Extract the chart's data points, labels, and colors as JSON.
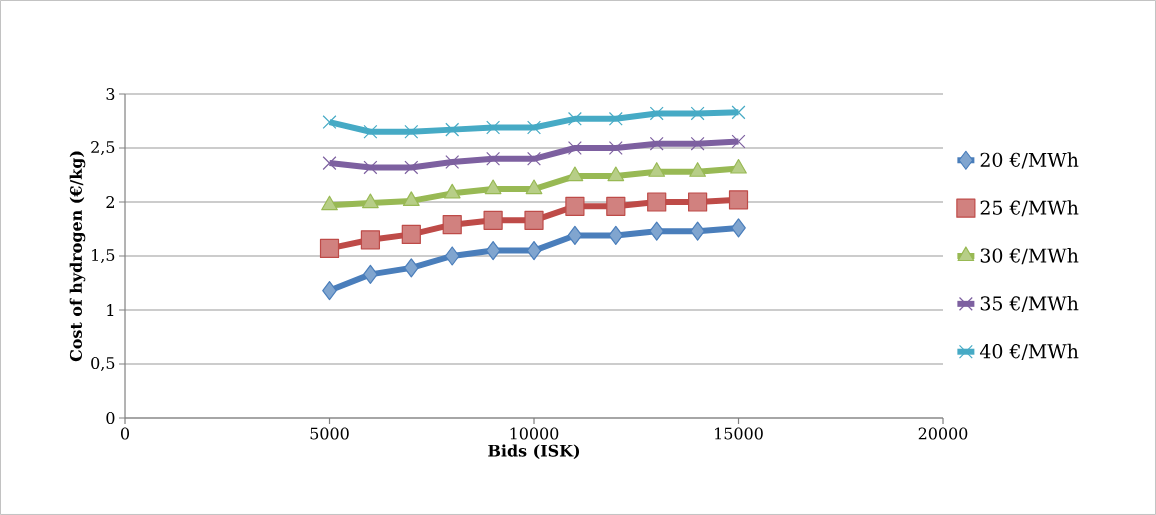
{
  "chart_data": {
    "type": "line",
    "xlabel": "Bids (ISK)",
    "ylabel": "Cost of hydrogen (€/kg)",
    "x": [
      5000,
      6000,
      7000,
      8000,
      9000,
      10000,
      11000,
      12000,
      13000,
      14000,
      15000
    ],
    "series": [
      {
        "name": "20 €/MWh",
        "color": "#4a7ebb",
        "marker": "diamond",
        "values": [
          1.18,
          1.33,
          1.39,
          1.5,
          1.55,
          1.55,
          1.69,
          1.69,
          1.73,
          1.73,
          1.76
        ]
      },
      {
        "name": "25 €/MWh",
        "color": "#be4b48",
        "marker": "square",
        "values": [
          1.57,
          1.65,
          1.7,
          1.79,
          1.83,
          1.83,
          1.96,
          1.96,
          2.0,
          2.0,
          2.02
        ]
      },
      {
        "name": "30 €/MWh",
        "color": "#98b954",
        "marker": "triangle",
        "values": [
          1.97,
          1.99,
          2.01,
          2.08,
          2.12,
          2.12,
          2.24,
          2.24,
          2.28,
          2.28,
          2.31
        ]
      },
      {
        "name": "35 €/MWh",
        "color": "#7d60a0",
        "marker": "cross",
        "values": [
          2.36,
          2.32,
          2.32,
          2.37,
          2.4,
          2.4,
          2.5,
          2.5,
          2.54,
          2.54,
          2.56
        ]
      },
      {
        "name": "40 €/MWh",
        "color": "#46aac5",
        "marker": "cross",
        "values": [
          2.74,
          2.65,
          2.65,
          2.67,
          2.69,
          2.69,
          2.77,
          2.77,
          2.82,
          2.82,
          2.83
        ]
      }
    ],
    "xlim": [
      0,
      20000
    ],
    "xticks": [
      0,
      5000,
      10000,
      15000,
      20000
    ],
    "ylim": [
      0,
      3
    ],
    "yticks": [
      0,
      {
        "value": 0.5,
        "label": "0,5"
      },
      1,
      {
        "value": 1.5,
        "label": "1,5"
      },
      2,
      {
        "value": 2.5,
        "label": "2,5"
      },
      3
    ],
    "grid": "y",
    "legend": "right",
    "line_style": "solid"
  }
}
